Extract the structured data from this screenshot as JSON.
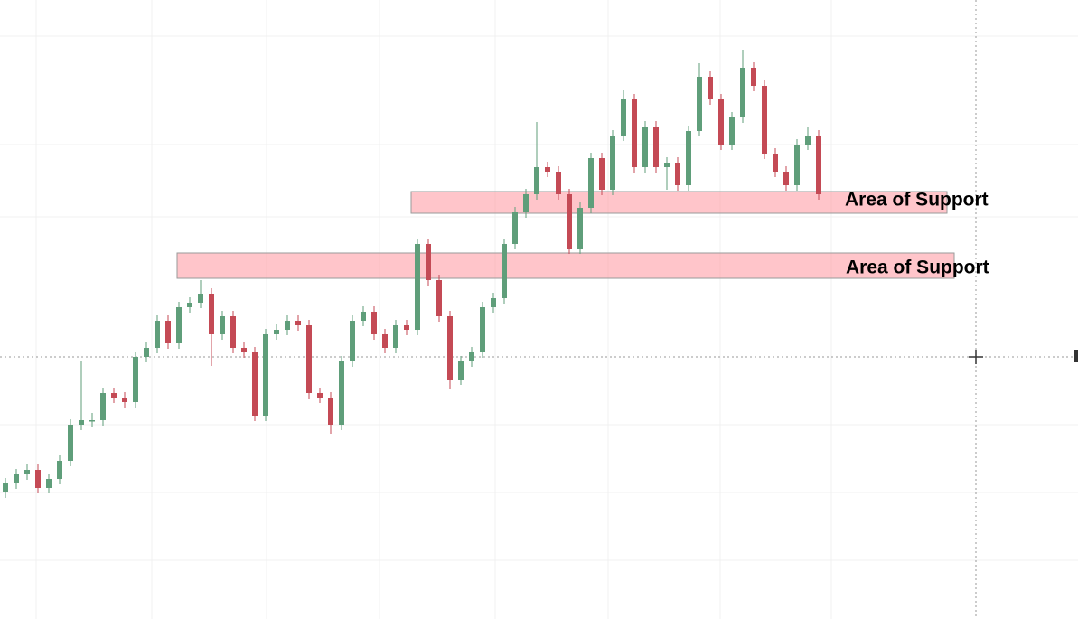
{
  "chart_data": {
    "type": "candlestick",
    "open": [
      140,
      150,
      160,
      165,
      145,
      155,
      175,
      215,
      220,
      220,
      250,
      245,
      240,
      290,
      300,
      330,
      305,
      345,
      350,
      360,
      315,
      335,
      300,
      295,
      225,
      315,
      320,
      330,
      325,
      250,
      245,
      215,
      285,
      330,
      340,
      315,
      300,
      325,
      320,
      415,
      375,
      335,
      265,
      285,
      295,
      345,
      355,
      415,
      450,
      470,
      500,
      495,
      470,
      410,
      455,
      510,
      475,
      535,
      575,
      500,
      545,
      500,
      505,
      480,
      540,
      600,
      575,
      525,
      555,
      610,
      590,
      515,
      495,
      480,
      525,
      535
    ],
    "high": [
      156,
      166,
      171,
      171,
      161,
      181,
      221,
      285,
      228,
      256,
      256,
      251,
      296,
      306,
      336,
      336,
      351,
      356,
      375,
      366,
      341,
      341,
      306,
      301,
      321,
      326,
      336,
      336,
      331,
      256,
      251,
      291,
      336,
      346,
      346,
      321,
      331,
      331,
      421,
      421,
      381,
      341,
      291,
      301,
      351,
      361,
      421,
      456,
      476,
      550,
      506,
      501,
      476,
      461,
      516,
      516,
      541,
      585,
      581,
      551,
      551,
      511,
      511,
      546,
      615,
      606,
      581,
      561,
      630,
      616,
      596,
      521,
      501,
      531,
      545,
      541
    ],
    "low": [
      134,
      144,
      154,
      139,
      139,
      149,
      169,
      209,
      212,
      214,
      239,
      234,
      234,
      284,
      294,
      299,
      299,
      339,
      344,
      280,
      309,
      294,
      289,
      219,
      219,
      309,
      314,
      319,
      244,
      239,
      205,
      209,
      279,
      324,
      309,
      294,
      294,
      314,
      314,
      369,
      329,
      255,
      259,
      279,
      289,
      339,
      349,
      409,
      444,
      464,
      489,
      464,
      404,
      404,
      449,
      469,
      469,
      529,
      494,
      494,
      494,
      475,
      474,
      474,
      534,
      569,
      519,
      519,
      549,
      584,
      509,
      489,
      474,
      474,
      519,
      464
    ],
    "close": [
      150,
      160,
      165,
      145,
      155,
      175,
      215,
      220,
      220,
      250,
      245,
      240,
      290,
      300,
      330,
      305,
      345,
      350,
      360,
      315,
      335,
      300,
      295,
      225,
      315,
      320,
      330,
      325,
      250,
      245,
      215,
      285,
      330,
      340,
      315,
      300,
      325,
      320,
      415,
      375,
      335,
      265,
      285,
      295,
      345,
      355,
      415,
      450,
      470,
      500,
      495,
      470,
      410,
      455,
      510,
      475,
      535,
      575,
      500,
      545,
      500,
      505,
      480,
      540,
      600,
      575,
      525,
      555,
      610,
      590,
      515,
      495,
      480,
      525,
      535,
      470
    ],
    "ylim": [
      0,
      685
    ],
    "colors": {
      "up": "#5f9e7a",
      "down": "#c44a55"
    },
    "zones": [
      {
        "label": "Area of Support",
        "low": 449,
        "high": 473
      },
      {
        "label": "Area of Support",
        "low": 377,
        "high": 405
      }
    ]
  }
}
